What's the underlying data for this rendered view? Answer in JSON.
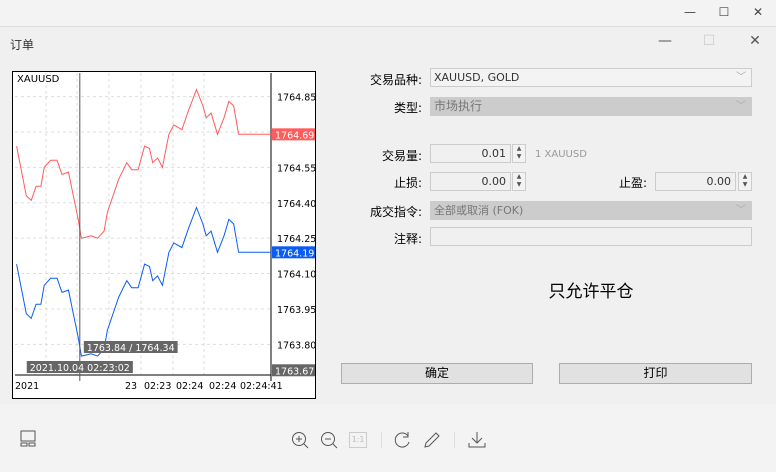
{
  "window": {
    "minimize": "—",
    "maximize": "☐",
    "close": "✕"
  },
  "dialog": {
    "title": "订单",
    "minimize": "—",
    "maximize": "☐",
    "close": "✕"
  },
  "form": {
    "symbol_label": "交易品种:",
    "symbol_value": "XAUUSD, GOLD",
    "type_label": "类型:",
    "type_value": "市场执行",
    "volume_label": "交易量:",
    "volume_value": "0.01",
    "volume_unit": "1 XAUUSD",
    "sl_label": "止损:",
    "sl_value": "0.00",
    "tp_label": "止盈:",
    "tp_value": "0.00",
    "fill_label": "成交指令:",
    "fill_value": "全部或取消 (FOK)",
    "comment_label": "注释:",
    "comment_value": "",
    "message": "只允许平仓",
    "ok_label": "确定",
    "print_label": "打印"
  },
  "toolbar": {
    "icons": [
      "layout-icon",
      "zoom-in-icon",
      "zoom-out-icon",
      "actual-size-icon",
      "rotate-icon",
      "edit-icon",
      "download-icon"
    ],
    "actual_size_label": "1:1"
  },
  "chart_data": {
    "type": "line",
    "title": "XAUUSD",
    "ylim": [
      1763.67,
      1764.95
    ],
    "xlim": [
      "02:22:22",
      "02:25:00"
    ],
    "y_ticks": [
      "1764.85",
      "1764.70",
      "1764.55",
      "1764.40",
      "1764.25",
      "1764.10",
      "1763.95",
      "1763.80"
    ],
    "y_tick_labels": [
      "1764.85",
      "1764.55",
      "1764.40",
      "1764.25",
      "1764.10",
      "1763.95",
      "1763.80"
    ],
    "x_tick_labels": [
      "2021",
      "23",
      "02:23",
      "02:24",
      "02:24",
      "02:24:41"
    ],
    "grid": true,
    "colors": {
      "ask": "#ff5b5b",
      "bid": "#0a5cf5"
    },
    "times": [
      "02:22:23",
      "02:22:29",
      "02:22:32",
      "02:22:35",
      "02:22:38",
      "02:22:40",
      "02:22:44",
      "02:22:48",
      "02:22:51",
      "02:22:55",
      "02:22:58",
      "02:23:01",
      "02:23:03",
      "02:23:09",
      "02:23:13",
      "02:23:17",
      "02:23:19",
      "02:23:26",
      "02:23:31",
      "02:23:34",
      "02:23:38",
      "02:23:42",
      "02:23:45",
      "02:23:47",
      "02:23:50",
      "02:23:53",
      "02:23:57",
      "02:24:00",
      "02:24:05",
      "02:24:09",
      "02:24:14",
      "02:24:18",
      "02:24:20",
      "02:24:23",
      "02:24:27",
      "02:24:31",
      "02:24:34",
      "02:24:37",
      "02:24:40",
      "02:25:00"
    ],
    "series": [
      {
        "id": "ask",
        "values": [
          1764.64,
          1764.43,
          1764.41,
          1764.47,
          1764.47,
          1764.55,
          1764.58,
          1764.58,
          1764.52,
          1764.53,
          1764.43,
          1764.33,
          1764.25,
          1764.26,
          1764.25,
          1764.28,
          1764.36,
          1764.5,
          1764.57,
          1764.54,
          1764.54,
          1764.64,
          1764.63,
          1764.57,
          1764.59,
          1764.55,
          1764.69,
          1764.73,
          1764.71,
          1764.79,
          1764.88,
          1764.81,
          1764.76,
          1764.78,
          1764.69,
          1764.76,
          1764.83,
          1764.81,
          1764.69,
          1764.69
        ]
      },
      {
        "id": "bid",
        "values": [
          1764.14,
          1763.93,
          1763.91,
          1763.97,
          1763.97,
          1764.05,
          1764.08,
          1764.08,
          1764.02,
          1764.03,
          1763.93,
          1763.83,
          1763.75,
          1763.76,
          1763.75,
          1763.78,
          1763.86,
          1764.0,
          1764.07,
          1764.04,
          1764.04,
          1764.14,
          1764.13,
          1764.07,
          1764.09,
          1764.05,
          1764.19,
          1764.23,
          1764.21,
          1764.29,
          1764.38,
          1764.31,
          1764.26,
          1764.28,
          1764.19,
          1764.26,
          1764.33,
          1764.31,
          1764.19,
          1764.19
        ]
      }
    ],
    "ask_label": "1764.69",
    "bid_label": "1764.19",
    "bottom_label": "1763.67",
    "crosshair_time": "02:23:02",
    "crosshair_price_label": "1763.84 / 1764.34",
    "crosshair_date_label": "2021.10.04 02:23:02"
  }
}
